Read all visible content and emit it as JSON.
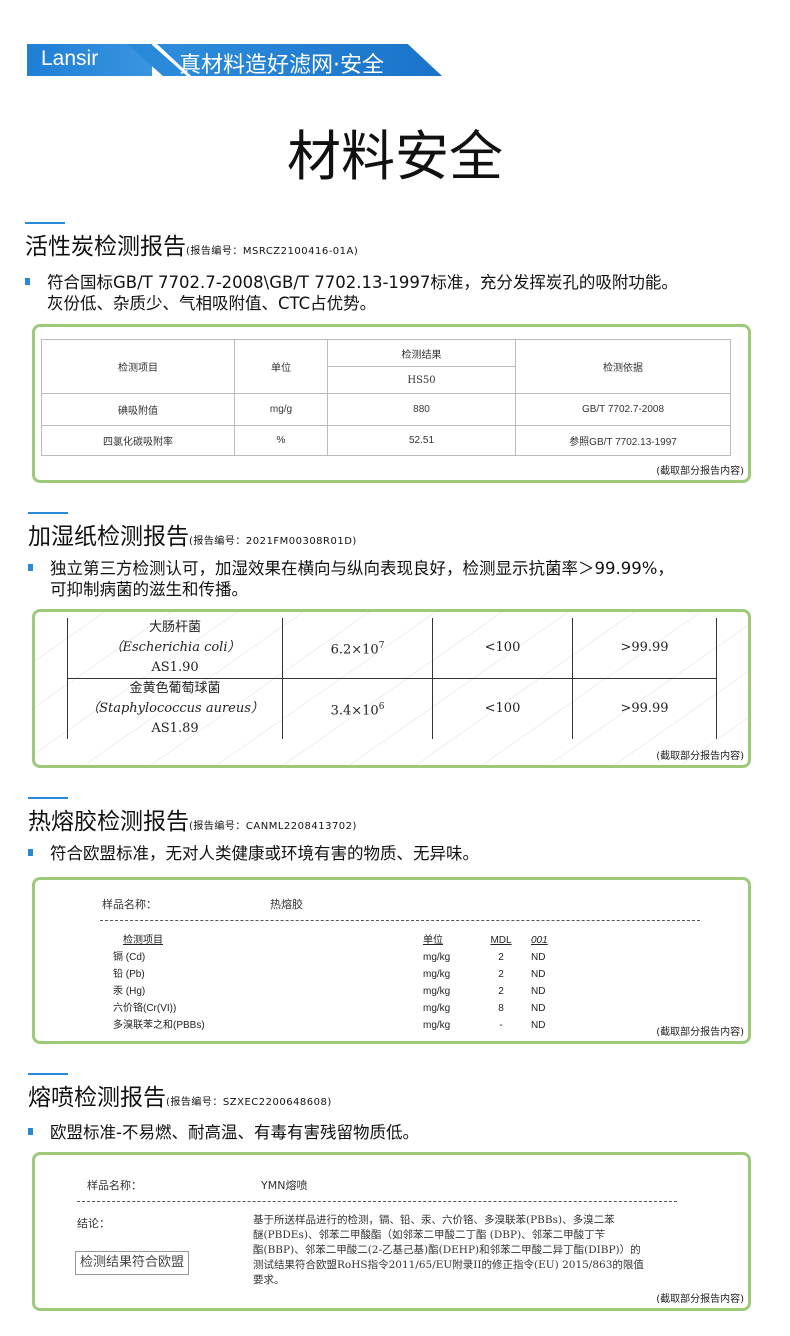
{
  "banner": {
    "brand": "Lansir",
    "slogan": "真材料造好滤网·安全",
    "colors": {
      "blue": "#2a88d8"
    }
  },
  "title": "材料安全",
  "sections": [
    {
      "heading": "活性炭检测报告",
      "report_no": "(报告编号：MSRCZ2100416-01A)",
      "bullets": [
        "符合国标GB/T 7702.7-2008\\GB/T 7702.13-1997标准，充分发挥炭孔的吸附功能。",
        "灰份低、杂质少、气相吸附值、CTC占优势。"
      ],
      "table": {
        "headers": [
          "检测项目",
          "单位",
          "检测结果",
          "检测依据"
        ],
        "sub_header": "HS50",
        "rows": [
          [
            "碘吸附值",
            "mg/g",
            "880",
            "GB/T 7702.7-2008"
          ],
          [
            "四氯化碳吸附率",
            "%",
            "52.51",
            "参照GB/T 7702.13-1997"
          ]
        ]
      },
      "note": "(截取部分报告内容)"
    },
    {
      "heading": "加湿纸检测报告",
      "report_no": "(报告编号：2021FM00308R01D)",
      "bullets": [
        "独立第三方检测认可，加湿效果在横向与纵向表现良好，检测显示抗菌率＞99.99%，",
        "可抑制病菌的滋生和传播。"
      ],
      "table": {
        "rows": [
          {
            "name": "大肠杆菌",
            "latin": "（Escherichia coli）",
            "code": "AS1.90",
            "initial": "6.2×10",
            "exp": "7",
            "after": "<100",
            "rate": ">99.99"
          },
          {
            "name": "金黄色葡萄球菌",
            "latin": "（Staphylococcus aureus）",
            "code": "AS1.89",
            "initial": "3.4×10",
            "exp": "6",
            "after": "<100",
            "rate": ">99.99"
          }
        ]
      },
      "watermark": "Gmicro Testing",
      "note": "(截取部分报告内容)"
    },
    {
      "heading": "热熔胶检测报告",
      "report_no": "(报告编号：CANML2208413702)",
      "bullets": [
        "符合欧盟标准，无对人类健康或环境有害的物质、无异味。"
      ],
      "sample_label": "样品名称：",
      "sample_value": "热熔胶",
      "table": {
        "headers": [
          "检测项目",
          "单位",
          "MDL",
          "001"
        ],
        "rows": [
          [
            "镉 (Cd)",
            "mg/kg",
            "2",
            "ND"
          ],
          [
            "铅 (Pb)",
            "mg/kg",
            "2",
            "ND"
          ],
          [
            "汞 (Hg)",
            "mg/kg",
            "2",
            "ND"
          ],
          [
            "六价铬(Cr(VI))",
            "mg/kg",
            "8",
            "ND"
          ],
          [
            "多溴联苯之和(PBBs)",
            "mg/kg",
            "-",
            "ND"
          ]
        ]
      },
      "note": "(截取部分报告内容)"
    },
    {
      "heading": "熔喷检测报告",
      "report_no": "(报告编号：SZXEC2200648608)",
      "bullets": [
        "欧盟标准-不易燃、耐高温、有毒有害残留物质低。"
      ],
      "sample_label": "样品名称：",
      "sample_value": "YMN熔喷",
      "conclusion_label": "结论：",
      "conclusion_lines": [
        "基于所送样品进行的检测，镉、铅、汞、六价铬、多溴联苯(PBBs)、多溴二苯",
        "醚(PBDEs)、邻苯二甲酸酯（如邻苯二甲酸二丁酯 (DBP)、邻苯二甲酸丁苄",
        "酯(BBP)、邻苯二甲酸二(2-乙基己基)酯(DEHP)和邻苯二甲酸二异丁酯(DIBP)）的",
        "测试结果符合欧盟RoHS指令2011/65/EU附录II的修正指令(EU) 2015/863的限值",
        "要求。"
      ],
      "overlay": "检测结果符合欧盟",
      "note": "(截取部分报告内容)"
    }
  ]
}
